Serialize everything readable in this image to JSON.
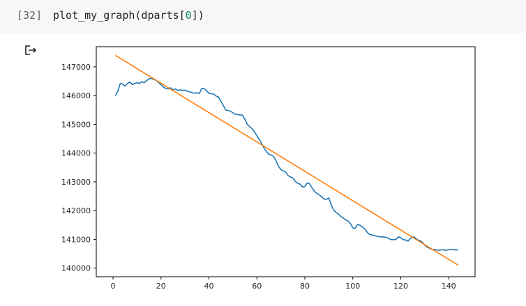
{
  "cell": {
    "prompt": "[32]",
    "code_prefix": "plot_my_graph(dparts[",
    "code_index": "0",
    "code_suffix": "])"
  },
  "output": {
    "icon": "output-arrow-icon"
  },
  "chart_data": {
    "type": "line",
    "xlim": [
      -7,
      151
    ],
    "ylim": [
      139700,
      147700
    ],
    "xticks": [
      0,
      20,
      40,
      60,
      80,
      100,
      120,
      140
    ],
    "yticks": [
      140000,
      141000,
      142000,
      143000,
      144000,
      145000,
      146000,
      147000
    ],
    "grid": false,
    "series": [
      {
        "color": "#1f77b4",
        "x": [
          1,
          2,
          3,
          4,
          5,
          6,
          7,
          8,
          9,
          10,
          11,
          12,
          13,
          14,
          15,
          16,
          17,
          18,
          19,
          20,
          21,
          22,
          23,
          24,
          25,
          26,
          27,
          28,
          29,
          30,
          31,
          32,
          33,
          34,
          35,
          36,
          37,
          38,
          39,
          40,
          41,
          42,
          43,
          44,
          45,
          46,
          47,
          48,
          49,
          50,
          51,
          52,
          53,
          54,
          55,
          56,
          57,
          58,
          59,
          60,
          61,
          62,
          63,
          64,
          65,
          66,
          67,
          68,
          69,
          70,
          71,
          72,
          73,
          74,
          75,
          76,
          77,
          78,
          79,
          80,
          81,
          82,
          83,
          84,
          85,
          86,
          87,
          88,
          89,
          90,
          91,
          92,
          93,
          94,
          95,
          96,
          97,
          98,
          99,
          100,
          101,
          102,
          103,
          104,
          105,
          106,
          107,
          108,
          109,
          110,
          111,
          112,
          113,
          114,
          115,
          116,
          117,
          118,
          119,
          120,
          121,
          122,
          123,
          124,
          125,
          126,
          127,
          128,
          129,
          130,
          131,
          132,
          133,
          134,
          135,
          136,
          137,
          138,
          139,
          140,
          141,
          142,
          143,
          144
        ],
        "y": [
          146000,
          146150,
          146420,
          146400,
          146330,
          146420,
          146470,
          146380,
          146420,
          146450,
          146420,
          146480,
          146450,
          146520,
          146580,
          146600,
          146560,
          146530,
          146450,
          146380,
          146300,
          146250,
          146230,
          146270,
          146200,
          146230,
          146180,
          146200,
          146180,
          146190,
          146150,
          146130,
          146100,
          146080,
          146100,
          146070,
          146250,
          146240,
          146170,
          146080,
          146060,
          146050,
          145980,
          145950,
          145800,
          145660,
          145500,
          145480,
          145460,
          145400,
          145350,
          145340,
          145330,
          145320,
          145170,
          145000,
          144920,
          144850,
          144740,
          144600,
          144470,
          144330,
          144170,
          144050,
          143960,
          143930,
          143880,
          143730,
          143540,
          143430,
          143380,
          143340,
          143220,
          143170,
          143130,
          143020,
          142950,
          142920,
          142820,
          142840,
          142960,
          142930,
          142790,
          142670,
          142600,
          142550,
          142480,
          142400,
          142390,
          142440,
          142200,
          142020,
          141940,
          141880,
          141800,
          141740,
          141680,
          141640,
          141550,
          141400,
          141380,
          141520,
          141490,
          141430,
          141360,
          141250,
          141170,
          141150,
          141130,
          141110,
          141090,
          141090,
          141080,
          141070,
          141030,
          140990,
          140990,
          141000,
          141090,
          141060,
          140990,
          140980,
          140940,
          141030,
          141090,
          141060,
          140980,
          140960,
          140900,
          140800,
          140730,
          140690,
          140650,
          140650,
          140630,
          140620,
          140640,
          140630,
          140620,
          140640,
          140650,
          140640,
          140630,
          140640
        ]
      },
      {
        "color": "#ff7f0e",
        "x": [
          1,
          144
        ],
        "y": [
          147400,
          140100
        ]
      }
    ]
  }
}
